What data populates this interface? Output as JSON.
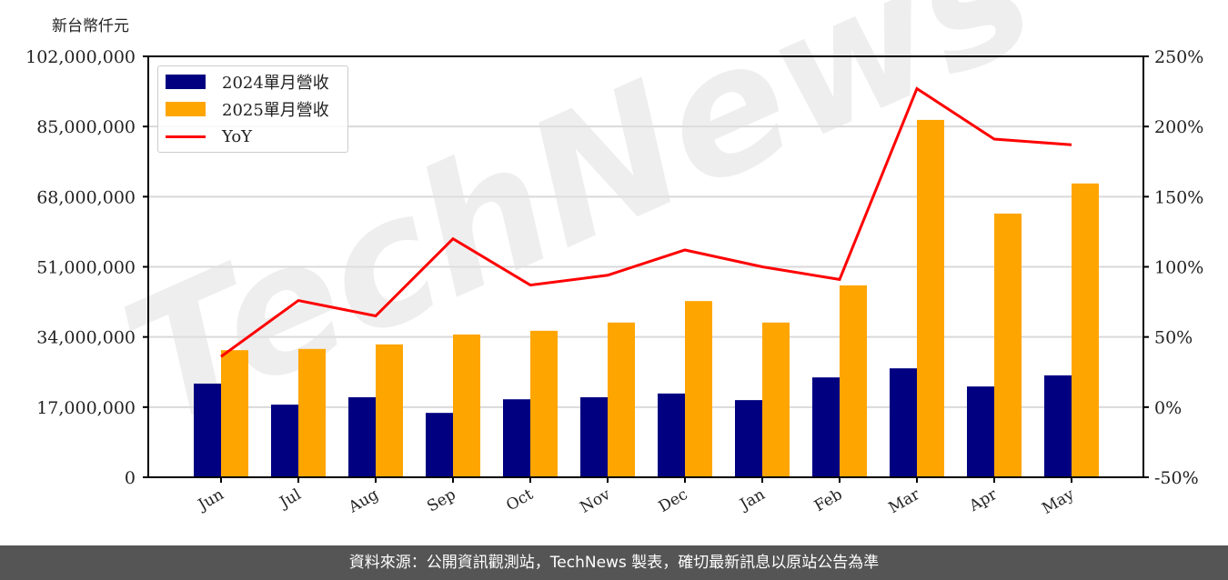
{
  "unit_label": "新台幣仟元",
  "footer": "資料來源：公開資訊觀測站，TechNews 製表，確切最新訊息以原站公告為準",
  "watermark": "TechNews",
  "legend": [
    {
      "label": "2024單月營收",
      "color": "#000080",
      "type": "bar"
    },
    {
      "label": "2025單月營收",
      "color": "#FFA500",
      "type": "bar"
    },
    {
      "label": "YoY",
      "color": "#FF0000",
      "type": "line"
    }
  ],
  "chart_data": {
    "type": "bar",
    "title": "",
    "xlabel": "",
    "ylabel": "新台幣仟元",
    "y2label": "YoY",
    "categories": [
      "Jun",
      "Jul",
      "Aug",
      "Sep",
      "Oct",
      "Nov",
      "Dec",
      "Jan",
      "Feb",
      "Mar",
      "Apr",
      "May"
    ],
    "series": [
      {
        "name": "2024單月營收",
        "type": "bar",
        "color": "#000080",
        "values": [
          22700000,
          17600000,
          19400000,
          15600000,
          18900000,
          19400000,
          20300000,
          18700000,
          24200000,
          26400000,
          22000000,
          24700000
        ]
      },
      {
        "name": "2025單月營收",
        "type": "bar",
        "color": "#FFA500",
        "values": [
          30800000,
          31100000,
          32200000,
          34600000,
          35500000,
          37500000,
          42700000,
          37500000,
          46500000,
          86600000,
          63900000,
          71200000
        ]
      },
      {
        "name": "YoY",
        "type": "line",
        "axis": "right",
        "color": "#FF0000",
        "unit": "%",
        "values": [
          36,
          76,
          65,
          120,
          87,
          94,
          112,
          100,
          91,
          227,
          191,
          187
        ]
      }
    ],
    "ylim": [
      0,
      102000000
    ],
    "yticks": [
      0,
      17000000,
      34000000,
      51000000,
      68000000,
      85000000,
      102000000
    ],
    "ytick_labels": [
      "0",
      "17,000,000",
      "34,000,000",
      "51,000,000",
      "68,000,000",
      "85,000,000",
      "102,000,000"
    ],
    "y2lim": [
      -50,
      250
    ],
    "y2ticks": [
      -50,
      0,
      50,
      100,
      150,
      200,
      250
    ],
    "y2tick_labels": [
      "-50%",
      "0%",
      "50%",
      "100%",
      "150%",
      "200%",
      "250%"
    ],
    "grid": true,
    "legend_position": "upper left"
  }
}
